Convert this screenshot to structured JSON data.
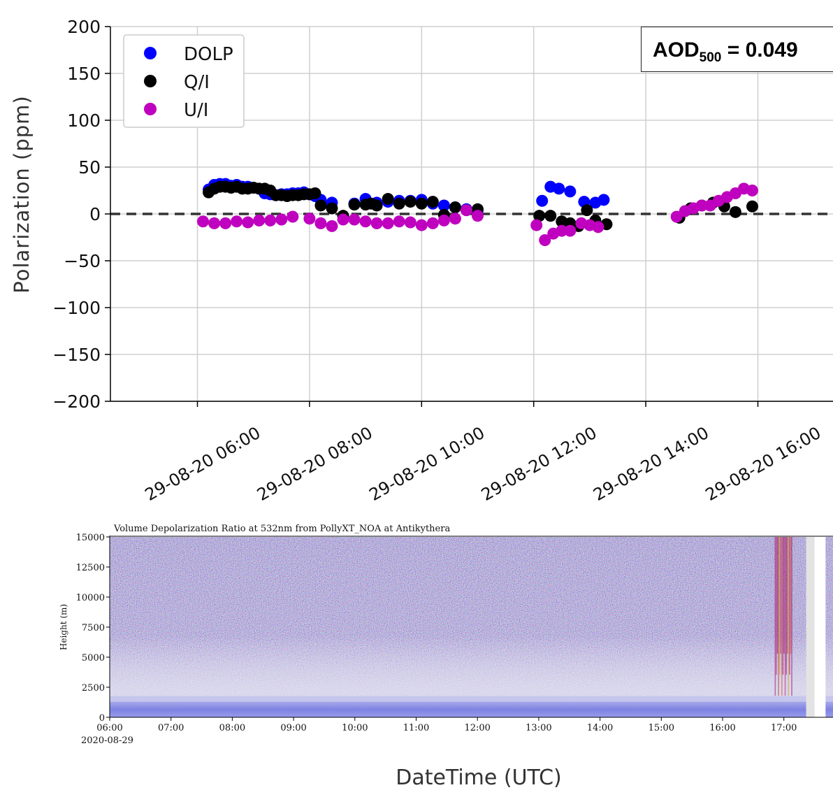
{
  "top_panel": {
    "aod_label": "AOD",
    "aod_subscript": "500",
    "aod_value_text": "= 0.049"
  },
  "bottom_panel": {
    "date_label": "2020-08-29"
  },
  "shared_xlabel": "DateTime (UTC)",
  "chart_data": [
    {
      "type": "scatter",
      "title": "",
      "ylabel": "Polarization  (ppm)",
      "xlabel": "",
      "ylim": [
        -200,
        200
      ],
      "yticks": [
        200,
        150,
        100,
        50,
        0,
        -50,
        -100,
        -150,
        -200
      ],
      "ytick_labels": [
        "200",
        "150",
        "100",
        "50",
        "0",
        "−50",
        "−100",
        "−150",
        "−200"
      ],
      "xlim_hours": [
        4.5,
        16.7
      ],
      "xticks_hours": [
        6,
        8,
        10,
        12,
        14,
        16
      ],
      "xtick_labels": [
        "29-08-20 06:00",
        "29-08-20 08:00",
        "29-08-20 10:00",
        "29-08-20 12:00",
        "29-08-20 14:00",
        "29-08-20 16:00"
      ],
      "grid": true,
      "legend_position": "top-left",
      "reference_line": {
        "y": 0,
        "style": "dashed"
      },
      "series": [
        {
          "name": "DOLP",
          "color": "#0000ff",
          "x": [
            6.2,
            6.3,
            6.4,
            6.5,
            6.6,
            6.7,
            6.8,
            6.9,
            7.0,
            7.1,
            7.2,
            7.3,
            7.4,
            7.5,
            7.6,
            7.7,
            7.8,
            7.9,
            8.0,
            8.1,
            8.2,
            8.4,
            8.8,
            9.0,
            9.2,
            9.4,
            9.6,
            9.8,
            10.0,
            10.2,
            10.4,
            10.6,
            10.8,
            11.0,
            12.15,
            12.3,
            12.45,
            12.65,
            12.9,
            13.1,
            13.25
          ],
          "y": [
            26,
            31,
            32,
            32,
            30,
            31,
            29,
            29,
            28,
            27,
            22,
            21,
            20,
            21,
            21,
            22,
            22,
            23,
            21,
            19,
            15,
            12,
            11,
            16,
            12,
            13,
            14,
            14,
            15,
            11,
            9,
            7,
            5,
            4,
            14,
            29,
            27,
            24,
            13,
            12,
            15
          ]
        },
        {
          "name": "Q/I",
          "color": "#000000",
          "x": [
            6.2,
            6.3,
            6.4,
            6.5,
            6.6,
            6.7,
            6.8,
            6.9,
            7.0,
            7.1,
            7.2,
            7.3,
            7.4,
            7.5,
            7.6,
            7.7,
            7.8,
            7.9,
            8.0,
            8.1,
            8.2,
            8.4,
            8.6,
            8.8,
            9.0,
            9.1,
            9.2,
            9.4,
            9.6,
            9.8,
            10.0,
            10.2,
            10.4,
            10.6,
            10.8,
            11.0,
            12.1,
            12.3,
            12.5,
            12.65,
            12.8,
            12.95,
            13.1,
            13.3,
            14.6,
            14.8,
            15.0,
            15.2,
            15.4,
            15.6,
            15.9
          ],
          "y": [
            23,
            27,
            29,
            29,
            28,
            29,
            27,
            27,
            28,
            27,
            27,
            25,
            20,
            20,
            19,
            20,
            20,
            21,
            21,
            22,
            9,
            6,
            -2,
            10,
            10,
            11,
            9,
            16,
            11,
            13,
            11,
            13,
            -1,
            7,
            4,
            5,
            -2,
            -2,
            -8,
            -10,
            -13,
            4,
            -7,
            -11,
            -4,
            6,
            9,
            12,
            8,
            2,
            8
          ]
        },
        {
          "name": "U/I",
          "color": "#bf00bf",
          "x": [
            6.1,
            6.3,
            6.5,
            6.7,
            6.9,
            7.1,
            7.3,
            7.5,
            7.7,
            8.0,
            8.2,
            8.4,
            8.6,
            8.8,
            9.0,
            9.2,
            9.4,
            9.6,
            9.8,
            10.0,
            10.2,
            10.4,
            10.6,
            10.8,
            11.0,
            12.05,
            12.2,
            12.35,
            12.5,
            12.65,
            12.85,
            13.0,
            13.15,
            14.55,
            14.7,
            14.85,
            15.0,
            15.15,
            15.3,
            15.45,
            15.6,
            15.75,
            15.9
          ],
          "y": [
            -8,
            -10,
            -10,
            -8,
            -9,
            -7,
            -7,
            -6,
            -3,
            -5,
            -10,
            -13,
            -6,
            -6,
            -8,
            -10,
            -10,
            -8,
            -9,
            -12,
            -10,
            -7,
            -5,
            4,
            -2,
            -12,
            -28,
            -21,
            -18,
            -18,
            -10,
            -12,
            -14,
            -3,
            3,
            6,
            9,
            9,
            14,
            18,
            22,
            27,
            25
          ]
        }
      ]
    },
    {
      "type": "heatmap",
      "title": "Volume Depolarization Ratio at 532nm from PollyXT_NOA at Antikythera",
      "ylabel": "Height (m)",
      "xlabel": "",
      "ylim": [
        0,
        15000
      ],
      "yticks": [
        0,
        2500,
        5000,
        7500,
        10000,
        12500,
        15000
      ],
      "ytick_labels": [
        "0",
        "2500",
        "5000",
        "7500",
        "10000",
        "12500",
        "15000"
      ],
      "xlim_hours": [
        6.0,
        18.0
      ],
      "xticks_hours": [
        6,
        7,
        8,
        9,
        10,
        11,
        12,
        13,
        14,
        15,
        16,
        17
      ],
      "xtick_labels": [
        "06:00",
        "07:00",
        "08:00",
        "09:00",
        "10:00",
        "11:00",
        "12:00",
        "13:00",
        "14:00",
        "15:00",
        "16:00",
        "17:00"
      ],
      "boundary_layer_top_m": 1300,
      "data_gap_hours": [
        17.5,
        17.68
      ]
    }
  ]
}
